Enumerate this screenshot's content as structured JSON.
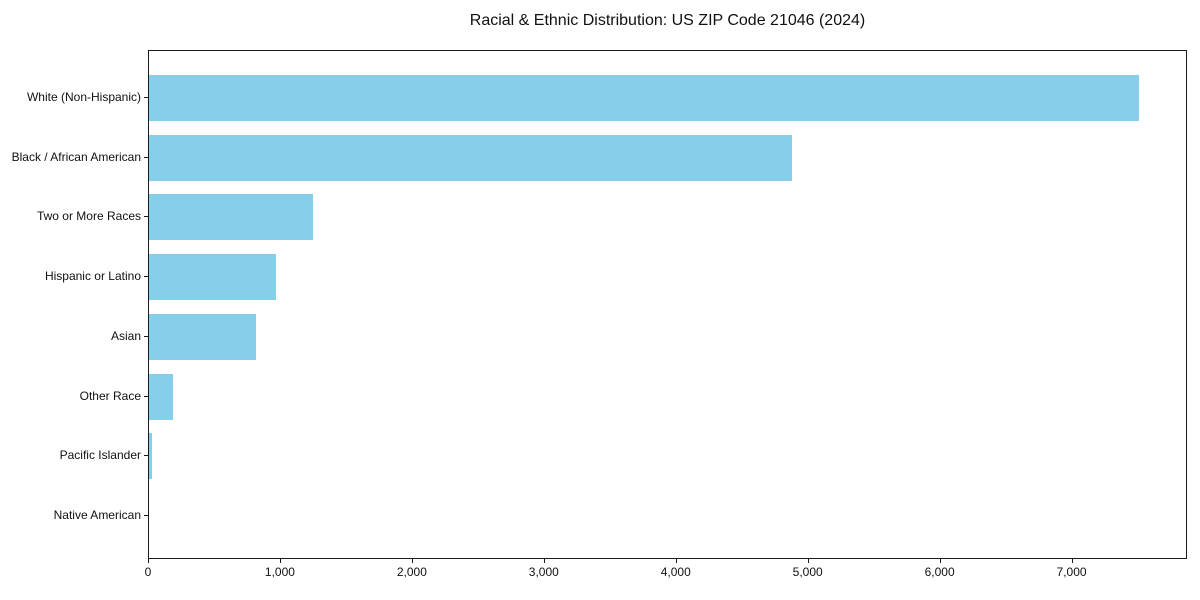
{
  "title": "Racial & Ethnic Distribution: US ZIP Code 21046 (2024)",
  "chart_data": {
    "type": "bar",
    "orientation": "horizontal",
    "title": "Racial & Ethnic Distribution: US ZIP Code 21046 (2024)",
    "xlabel": "",
    "ylabel": "",
    "categories": [
      "White (Non-Hispanic)",
      "Black / African American",
      "Two or More Races",
      "Hispanic or Latino",
      "Asian",
      "Other Race",
      "Pacific Islander",
      "Native American"
    ],
    "values": [
      7500,
      4870,
      1240,
      960,
      810,
      180,
      20,
      0
    ],
    "xlim": [
      0,
      7875
    ],
    "xticks": [
      0,
      1000,
      2000,
      3000,
      4000,
      5000,
      6000,
      7000
    ],
    "xtick_labels": [
      "0",
      "1,000",
      "2,000",
      "3,000",
      "4,000",
      "5,000",
      "6,000",
      "7,000"
    ],
    "grid": false,
    "legend": null,
    "bar_color": "#87CEEB"
  },
  "colors": {
    "bar": "#87CEEB",
    "spine": "#1a1a1a",
    "text": "#111111",
    "background": "#ffffff"
  }
}
